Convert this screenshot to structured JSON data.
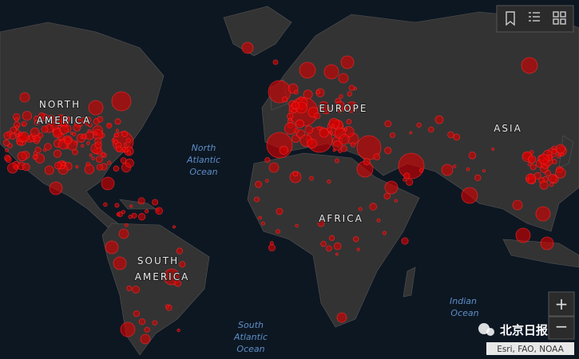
{
  "map": {
    "continent_labels": [
      {
        "lines": [
          "NORTH",
          "AMERICA"
        ]
      },
      {
        "lines": [
          "EUROPE"
        ]
      },
      {
        "lines": [
          "ASIA"
        ]
      },
      {
        "lines": [
          "AFRICA"
        ]
      },
      {
        "lines": [
          "SOUTH",
          "AMERICA"
        ]
      }
    ],
    "ocean_labels": [
      {
        "lines": [
          "North",
          "Atlantic",
          "Ocean"
        ]
      },
      {
        "lines": [
          "South",
          "Atlantic",
          "Ocean"
        ]
      },
      {
        "lines": [
          "Indian",
          "Ocean"
        ]
      }
    ],
    "watermark": "北京日报",
    "attribution": "Esri, FAO, NOAA",
    "zoom_in": "+",
    "zoom_out": "−"
  }
}
